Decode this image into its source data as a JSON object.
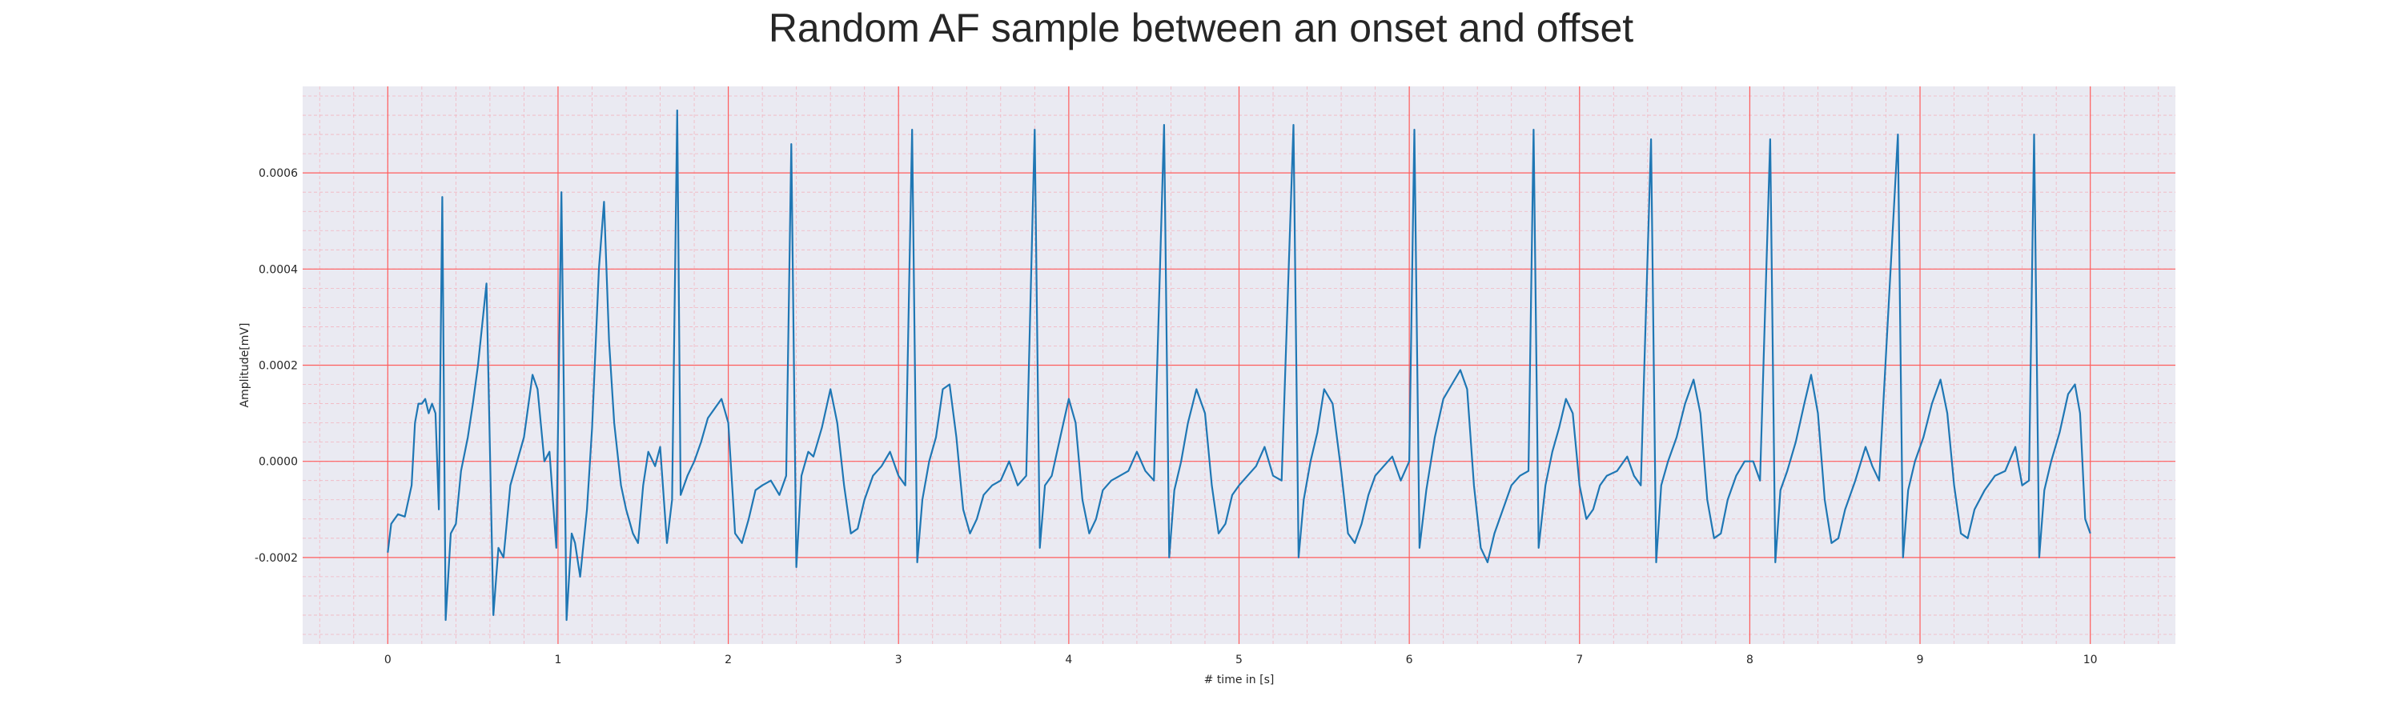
{
  "chart_data": {
    "type": "line",
    "title": "Random AF sample between an onset and offset",
    "xlabel": "# time in [s]",
    "ylabel": "Amplitude[mV]",
    "xlim": [
      -0.5,
      10.5
    ],
    "ylim": [
      -0.00038,
      0.00078
    ],
    "x_ticks": [
      0,
      1,
      2,
      3,
      4,
      5,
      6,
      7,
      8,
      9,
      10
    ],
    "x_tick_labels": [
      "0",
      "1",
      "2",
      "3",
      "4",
      "5",
      "6",
      "7",
      "8",
      "9",
      "10"
    ],
    "y_ticks": [
      -0.0002,
      0.0,
      0.0002,
      0.0004,
      0.0006
    ],
    "y_tick_labels": [
      "-0.0002",
      "0.0000",
      "0.0002",
      "0.0004",
      "0.0006"
    ],
    "grid": {
      "major": true,
      "minor": true,
      "major_color": "#ff5c5c",
      "minor_color": "#f2b5c0"
    },
    "background_color": "#eaeaf2",
    "line_color": "#1f77b4",
    "series": [
      {
        "values": [
          [
            0.0,
            -0.00019
          ],
          [
            0.02,
            -0.00013
          ],
          [
            0.06,
            -0.00011
          ],
          [
            0.1,
            -0.000115
          ],
          [
            0.14,
            -5e-05
          ],
          [
            0.16,
            8e-05
          ],
          [
            0.18,
            0.00012
          ],
          [
            0.2,
            0.00012
          ],
          [
            0.22,
            0.00013
          ],
          [
            0.24,
            0.0001
          ],
          [
            0.26,
            0.00012
          ],
          [
            0.28,
            0.0001
          ],
          [
            0.3,
            -0.0001
          ],
          [
            0.32,
            0.00055
          ],
          [
            0.34,
            -0.00033
          ],
          [
            0.37,
            -0.00015
          ],
          [
            0.4,
            -0.00013
          ],
          [
            0.43,
            -2e-05
          ],
          [
            0.47,
            5e-05
          ],
          [
            0.5,
            0.00012
          ],
          [
            0.53,
            0.0002
          ],
          [
            0.58,
            0.00037
          ],
          [
            0.62,
            -0.00032
          ],
          [
            0.65,
            -0.00018
          ],
          [
            0.68,
            -0.0002
          ],
          [
            0.72,
            -5e-05
          ],
          [
            0.76,
            0.0
          ],
          [
            0.8,
            5e-05
          ],
          [
            0.85,
            0.00018
          ],
          [
            0.88,
            0.00015
          ],
          [
            0.92,
            0.0
          ],
          [
            0.95,
            2e-05
          ],
          [
            0.99,
            -0.00018
          ],
          [
            1.02,
            0.00056
          ],
          [
            1.05,
            -0.00033
          ],
          [
            1.08,
            -0.00015
          ],
          [
            1.1,
            -0.00017
          ],
          [
            1.13,
            -0.00024
          ],
          [
            1.17,
            -0.0001
          ],
          [
            1.2,
            7e-05
          ],
          [
            1.24,
            0.0004
          ],
          [
            1.27,
            0.00054
          ],
          [
            1.3,
            0.00025
          ],
          [
            1.33,
            8e-05
          ],
          [
            1.37,
            -5e-05
          ],
          [
            1.4,
            -0.0001
          ],
          [
            1.44,
            -0.00015
          ],
          [
            1.47,
            -0.00017
          ],
          [
            1.5,
            -5e-05
          ],
          [
            1.53,
            2e-05
          ],
          [
            1.57,
            -1e-05
          ],
          [
            1.6,
            3e-05
          ],
          [
            1.64,
            -0.00017
          ],
          [
            1.67,
            -8e-05
          ],
          [
            1.7,
            0.00073
          ],
          [
            1.72,
            -7e-05
          ],
          [
            1.76,
            -3e-05
          ],
          [
            1.8,
            0.0
          ],
          [
            1.84,
            4e-05
          ],
          [
            1.88,
            9e-05
          ],
          [
            1.92,
            0.00011
          ],
          [
            1.96,
            0.00013
          ],
          [
            2.0,
            8e-05
          ],
          [
            2.04,
            -0.00015
          ],
          [
            2.08,
            -0.00017
          ],
          [
            2.12,
            -0.00012
          ],
          [
            2.16,
            -6e-05
          ],
          [
            2.2,
            -5e-05
          ],
          [
            2.25,
            -4e-05
          ],
          [
            2.3,
            -7e-05
          ],
          [
            2.34,
            -3e-05
          ],
          [
            2.37,
            0.00066
          ],
          [
            2.4,
            -0.00022
          ],
          [
            2.43,
            -3e-05
          ],
          [
            2.47,
            2e-05
          ],
          [
            2.5,
            1e-05
          ],
          [
            2.55,
            7e-05
          ],
          [
            2.6,
            0.00015
          ],
          [
            2.64,
            8e-05
          ],
          [
            2.68,
            -5e-05
          ],
          [
            2.72,
            -0.00015
          ],
          [
            2.76,
            -0.00014
          ],
          [
            2.8,
            -8e-05
          ],
          [
            2.85,
            -3e-05
          ],
          [
            2.9,
            -1e-05
          ],
          [
            2.95,
            2e-05
          ],
          [
            3.0,
            -3e-05
          ],
          [
            3.04,
            -5e-05
          ],
          [
            3.08,
            0.00069
          ],
          [
            3.11,
            -0.00021
          ],
          [
            3.14,
            -8e-05
          ],
          [
            3.18,
            0.0
          ],
          [
            3.22,
            5e-05
          ],
          [
            3.26,
            0.00015
          ],
          [
            3.3,
            0.00016
          ],
          [
            3.34,
            5e-05
          ],
          [
            3.38,
            -0.0001
          ],
          [
            3.42,
            -0.00015
          ],
          [
            3.46,
            -0.00012
          ],
          [
            3.5,
            -7e-05
          ],
          [
            3.55,
            -5e-05
          ],
          [
            3.6,
            -4e-05
          ],
          [
            3.65,
            0.0
          ],
          [
            3.7,
            -5e-05
          ],
          [
            3.75,
            -3e-05
          ],
          [
            3.8,
            0.00069
          ],
          [
            3.83,
            -0.00018
          ],
          [
            3.86,
            -5e-05
          ],
          [
            3.9,
            -3e-05
          ],
          [
            3.95,
            5e-05
          ],
          [
            4.0,
            0.00013
          ],
          [
            4.04,
            8e-05
          ],
          [
            4.08,
            -8e-05
          ],
          [
            4.12,
            -0.00015
          ],
          [
            4.16,
            -0.00012
          ],
          [
            4.2,
            -6e-05
          ],
          [
            4.25,
            -4e-05
          ],
          [
            4.3,
            -3e-05
          ],
          [
            4.35,
            -2e-05
          ],
          [
            4.4,
            2e-05
          ],
          [
            4.45,
            -2e-05
          ],
          [
            4.5,
            -4e-05
          ],
          [
            4.56,
            0.0007
          ],
          [
            4.59,
            -0.0002
          ],
          [
            4.62,
            -6e-05
          ],
          [
            4.66,
            0.0
          ],
          [
            4.7,
            8e-05
          ],
          [
            4.75,
            0.00015
          ],
          [
            4.8,
            0.0001
          ],
          [
            4.84,
            -5e-05
          ],
          [
            4.88,
            -0.00015
          ],
          [
            4.92,
            -0.00013
          ],
          [
            4.96,
            -7e-05
          ],
          [
            5.0,
            -5e-05
          ],
          [
            5.05,
            -3e-05
          ],
          [
            5.1,
            -1e-05
          ],
          [
            5.15,
            3e-05
          ],
          [
            5.2,
            -3e-05
          ],
          [
            5.25,
            -4e-05
          ],
          [
            5.32,
            0.0007
          ],
          [
            5.35,
            -0.0002
          ],
          [
            5.38,
            -8e-05
          ],
          [
            5.42,
            0.0
          ],
          [
            5.46,
            6e-05
          ],
          [
            5.5,
            0.00015
          ],
          [
            5.55,
            0.00012
          ],
          [
            5.6,
            -2e-05
          ],
          [
            5.64,
            -0.00015
          ],
          [
            5.68,
            -0.00017
          ],
          [
            5.72,
            -0.00013
          ],
          [
            5.76,
            -7e-05
          ],
          [
            5.8,
            -3e-05
          ],
          [
            5.85,
            -1e-05
          ],
          [
            5.9,
            1e-05
          ],
          [
            5.95,
            -4e-05
          ],
          [
            6.0,
            0.0
          ],
          [
            6.03,
            0.00069
          ],
          [
            6.06,
            -0.00018
          ],
          [
            6.1,
            -6e-05
          ],
          [
            6.15,
            5e-05
          ],
          [
            6.2,
            0.00013
          ],
          [
            6.25,
            0.00016
          ],
          [
            6.3,
            0.00019
          ],
          [
            6.34,
            0.00015
          ],
          [
            6.38,
            -5e-05
          ],
          [
            6.42,
            -0.00018
          ],
          [
            6.46,
            -0.00021
          ],
          [
            6.5,
            -0.00015
          ],
          [
            6.55,
            -0.0001
          ],
          [
            6.6,
            -5e-05
          ],
          [
            6.65,
            -3e-05
          ],
          [
            6.7,
            -2e-05
          ],
          [
            6.73,
            0.00069
          ],
          [
            6.76,
            -0.00018
          ],
          [
            6.8,
            -5e-05
          ],
          [
            6.84,
            2e-05
          ],
          [
            6.88,
            7e-05
          ],
          [
            6.92,
            0.00013
          ],
          [
            6.96,
            0.0001
          ],
          [
            7.0,
            -5e-05
          ],
          [
            7.04,
            -0.00012
          ],
          [
            7.08,
            -0.0001
          ],
          [
            7.12,
            -5e-05
          ],
          [
            7.16,
            -3e-05
          ],
          [
            7.22,
            -2e-05
          ],
          [
            7.28,
            1e-05
          ],
          [
            7.32,
            -3e-05
          ],
          [
            7.36,
            -5e-05
          ],
          [
            7.42,
            0.00067
          ],
          [
            7.45,
            -0.00021
          ],
          [
            7.48,
            -5e-05
          ],
          [
            7.52,
            0.0
          ],
          [
            7.57,
            5e-05
          ],
          [
            7.62,
            0.00012
          ],
          [
            7.67,
            0.00017
          ],
          [
            7.71,
            0.0001
          ],
          [
            7.75,
            -8e-05
          ],
          [
            7.79,
            -0.00016
          ],
          [
            7.83,
            -0.00015
          ],
          [
            7.87,
            -8e-05
          ],
          [
            7.92,
            -3e-05
          ],
          [
            7.97,
            0.0
          ],
          [
            8.02,
            0.0
          ],
          [
            8.06,
            -4e-05
          ],
          [
            8.12,
            0.00067
          ],
          [
            8.15,
            -0.00021
          ],
          [
            8.18,
            -6e-05
          ],
          [
            8.22,
            -2e-05
          ],
          [
            8.27,
            4e-05
          ],
          [
            8.32,
            0.00012
          ],
          [
            8.36,
            0.00018
          ],
          [
            8.4,
            0.0001
          ],
          [
            8.44,
            -8e-05
          ],
          [
            8.48,
            -0.00017
          ],
          [
            8.52,
            -0.00016
          ],
          [
            8.56,
            -0.0001
          ],
          [
            8.62,
            -4e-05
          ],
          [
            8.68,
            3e-05
          ],
          [
            8.72,
            -1e-05
          ],
          [
            8.76,
            -4e-05
          ],
          [
            8.87,
            0.00068
          ],
          [
            8.9,
            -0.0002
          ],
          [
            8.93,
            -6e-05
          ],
          [
            8.97,
            0.0
          ],
          [
            9.02,
            5e-05
          ],
          [
            9.07,
            0.00012
          ],
          [
            9.12,
            0.00017
          ],
          [
            9.16,
            0.0001
          ],
          [
            9.2,
            -5e-05
          ],
          [
            9.24,
            -0.00015
          ],
          [
            9.28,
            -0.00016
          ],
          [
            9.32,
            -0.0001
          ],
          [
            9.38,
            -6e-05
          ],
          [
            9.44,
            -3e-05
          ],
          [
            9.5,
            -2e-05
          ],
          [
            9.56,
            3e-05
          ],
          [
            9.6,
            -5e-05
          ],
          [
            9.64,
            -4e-05
          ],
          [
            9.67,
            0.00068
          ],
          [
            9.7,
            -0.0002
          ],
          [
            9.73,
            -6e-05
          ],
          [
            9.77,
            0.0
          ],
          [
            9.82,
            6e-05
          ],
          [
            9.87,
            0.00014
          ],
          [
            9.91,
            0.00016
          ],
          [
            9.94,
            0.0001
          ],
          [
            9.97,
            -0.00012
          ],
          [
            10.0,
            -0.00015
          ]
        ]
      }
    ]
  }
}
